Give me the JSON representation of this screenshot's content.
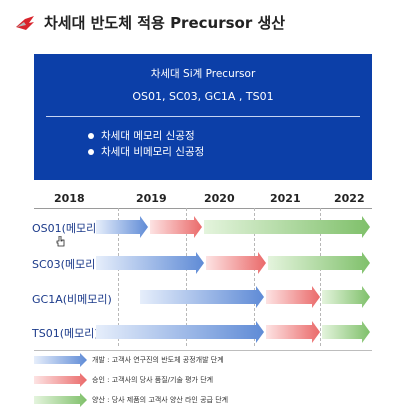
{
  "title": "차세대 반도체 적용 Precursor 생산",
  "box": {
    "line1": "차세대 Si계 Precursor",
    "line2": "OS01, SC03, GC1A , TS01",
    "bullets": [
      "차세대 메모리 신공정",
      "차세대 비메모리 신공정"
    ]
  },
  "years": [
    "2018",
    "2019",
    "2020",
    "2021",
    "2022"
  ],
  "rows": [
    {
      "label": "OS01(메모리)"
    },
    {
      "label": "SC03(메모리)"
    },
    {
      "label": "GC1A(비메모리)"
    },
    {
      "label": "TS01(메모리)"
    }
  ],
  "legend": [
    {
      "text": "개발 : 고객사 연구진의 반도체 공정개발 단계",
      "color": "#6f97dc"
    },
    {
      "text": "승인 : 고객사의 당사 품질/기술 평가 단계",
      "color": "#ef7a7a"
    },
    {
      "text": "양산 : 당사 제품의 고객사 양산 라인 공급 단계",
      "color": "#8cc97a"
    }
  ],
  "colors": {
    "box_bg": "#0c3fa8",
    "dev": "#6f97dc",
    "approval": "#ef7a7a",
    "mass": "#8cc97a"
  }
}
